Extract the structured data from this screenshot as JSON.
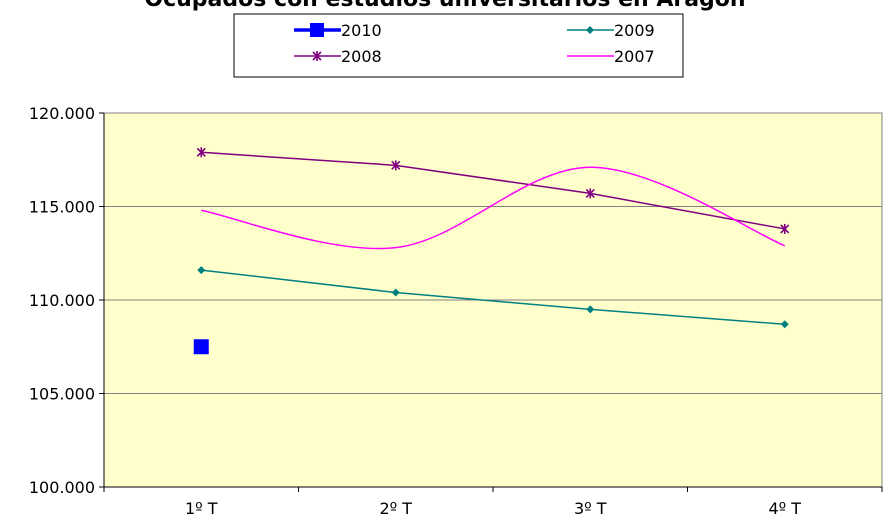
{
  "chart_data": {
    "type": "line",
    "title": "Ocupados con estudios universitarios en Aragón",
    "categories": [
      "1º T",
      "2º T",
      "3º T",
      "4º T"
    ],
    "ylim": [
      100000,
      120000
    ],
    "yticks": [
      100000,
      105000,
      110000,
      115000,
      120000
    ],
    "ytick_labels": [
      "100.000",
      "105.000",
      "110.000",
      "115.000",
      "120.000"
    ],
    "grid": true,
    "legend_position": "top",
    "series": [
      {
        "name": "2010",
        "values": [
          107500,
          null,
          null,
          null
        ],
        "color": "#0000FF",
        "marker": "square",
        "smooth": false
      },
      {
        "name": "2009",
        "values": [
          111600,
          110400,
          109500,
          108700
        ],
        "color": "#008080",
        "marker": "diamond",
        "smooth": false
      },
      {
        "name": "2008",
        "values": [
          117900,
          117200,
          115700,
          113800
        ],
        "color": "#800080",
        "marker": "star",
        "smooth": false
      },
      {
        "name": "2007",
        "values": [
          114800,
          112800,
          117100,
          112900
        ],
        "color": "#FF00FF",
        "marker": "none",
        "smooth": true
      }
    ],
    "plot_background": "#FFFFCC"
  }
}
